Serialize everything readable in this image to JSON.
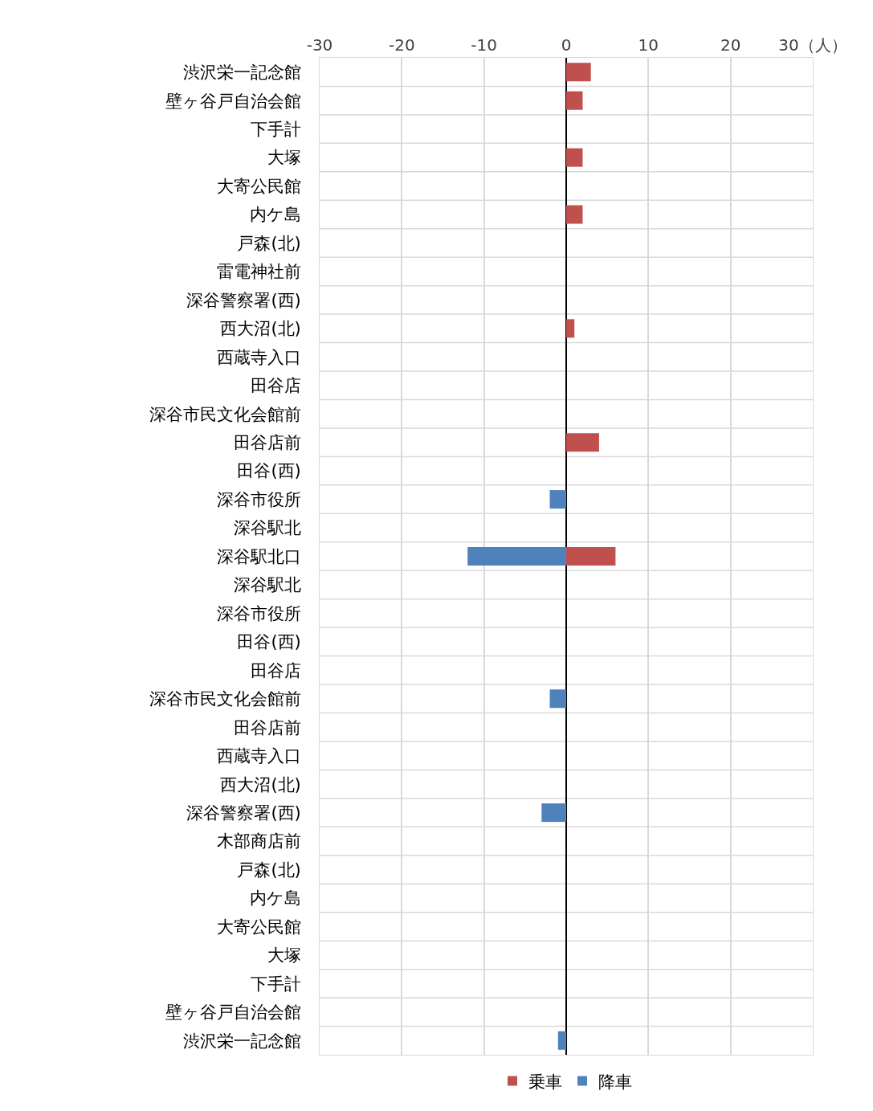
{
  "chart_data": {
    "type": "bar",
    "orientation": "horizontal",
    "categories": [
      "渋沢栄一記念館",
      "壁ヶ谷戸自治会館",
      "下手計",
      "大塚",
      "大寄公民館",
      "内ケ島",
      "戸森(北)",
      "雷電神社前",
      "深谷警察署(西)",
      "西大沼(北)",
      "西蔵寺入口",
      "田谷店",
      "深谷市民文化会館前",
      "田谷店前",
      "田谷(西)",
      "深谷市役所",
      "深谷駅北",
      "深谷駅北口",
      "深谷駅北",
      "深谷市役所",
      "田谷(西)",
      "田谷店",
      "深谷市民文化会館前",
      "田谷店前",
      "西蔵寺入口",
      "西大沼(北)",
      "深谷警察署(西)",
      "木部商店前",
      "戸森(北)",
      "内ケ島",
      "大寄公民館",
      "大塚",
      "下手計",
      "壁ヶ谷戸自治会館",
      "渋沢栄一記念館"
    ],
    "series": [
      {
        "name": "乗車",
        "color": "#c0504d",
        "values": [
          3,
          2,
          0,
          2,
          0,
          2,
          0,
          0,
          0,
          1,
          0,
          0,
          0,
          4,
          0,
          0,
          0,
          6,
          0,
          0,
          0,
          0,
          0,
          0,
          0,
          0,
          0,
          0,
          0,
          0,
          0,
          0,
          0,
          0,
          0
        ]
      },
      {
        "name": "降車",
        "color": "#4f81bd",
        "values": [
          0,
          0,
          0,
          0,
          0,
          0,
          0,
          0,
          0,
          0,
          0,
          0,
          0,
          0,
          0,
          -2,
          0,
          -12,
          0,
          0,
          0,
          0,
          -2,
          0,
          0,
          0,
          -3,
          0,
          0,
          0,
          0,
          0,
          0,
          0,
          -1
        ]
      }
    ],
    "xlim": [
      -30,
      30
    ],
    "xticks": [
      -30,
      -20,
      -10,
      0,
      10,
      20,
      {
        "value": 30,
        "label": "30（人）"
      }
    ],
    "grid": true,
    "legend": "bottom"
  }
}
